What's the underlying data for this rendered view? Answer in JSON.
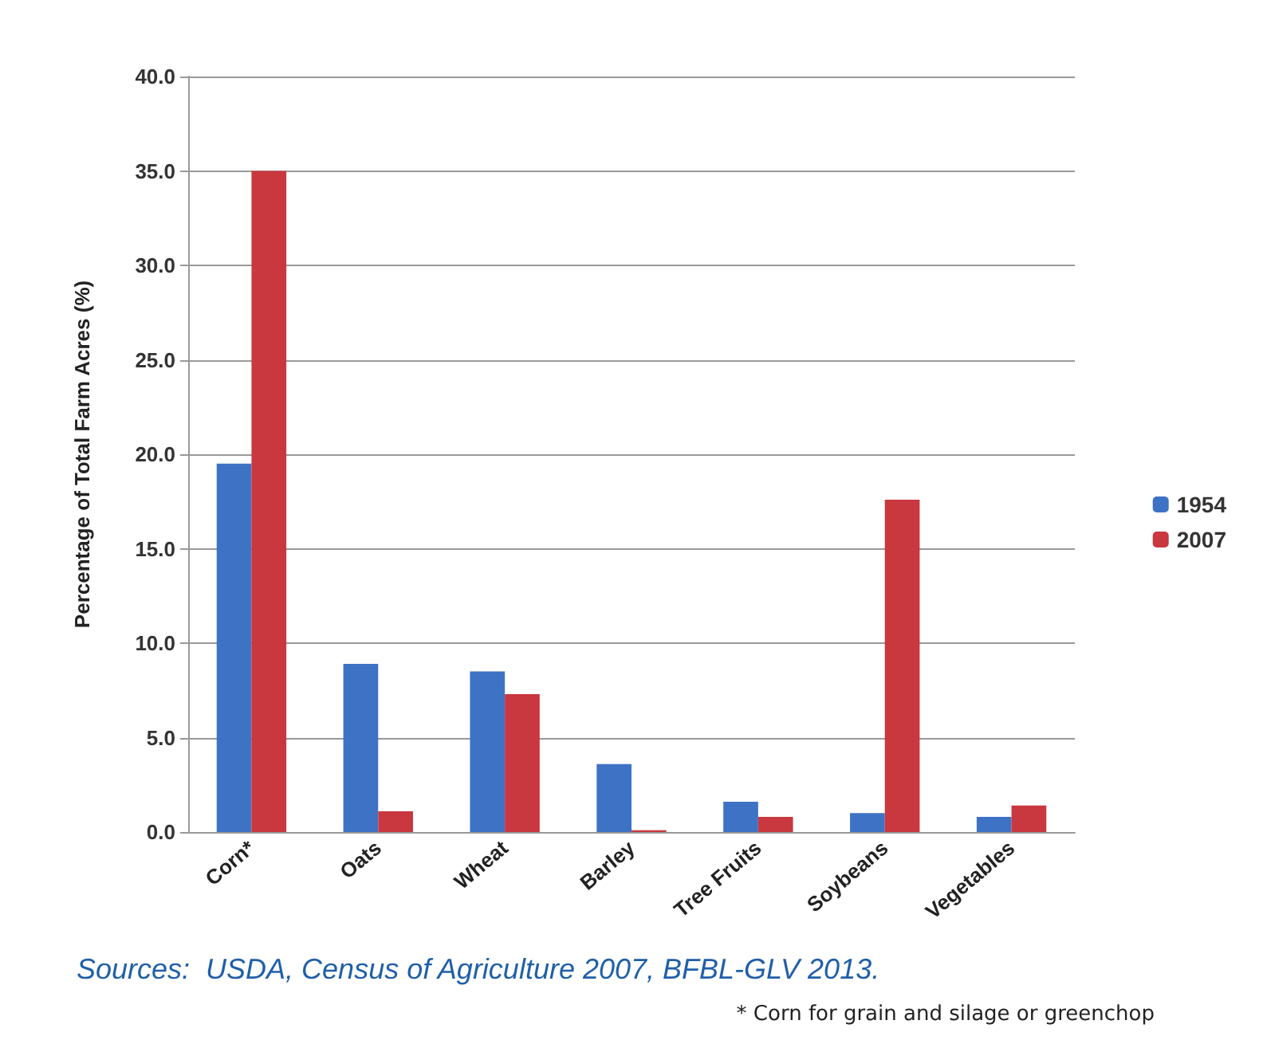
{
  "chart_data": {
    "type": "bar",
    "ylabel": "Percentage of Total Farm Acres (%)",
    "categories": [
      "Corn*",
      "Oats",
      "Wheat",
      "Barley",
      "Tree Fruits",
      "Soybeans",
      "Vegetables"
    ],
    "series": [
      {
        "name": "1954",
        "color": "#3e72c4",
        "values": [
          19.5,
          8.9,
          8.5,
          3.6,
          1.6,
          1.0,
          0.8
        ]
      },
      {
        "name": "2007",
        "color": "#c9373f",
        "values": [
          35.0,
          1.1,
          7.3,
          0.1,
          0.8,
          17.6,
          1.4
        ]
      }
    ],
    "ylim": [
      0,
      40
    ],
    "yticks": [
      {
        "value": 0,
        "label": "0.0"
      },
      {
        "value": 5,
        "label": "5.0"
      },
      {
        "value": 10,
        "label": "10.0"
      },
      {
        "value": 15,
        "label": "15.0"
      },
      {
        "value": 20,
        "label": "20.0"
      },
      {
        "value": 25,
        "label": "25.0"
      },
      {
        "value": 30,
        "label": "30.0"
      },
      {
        "value": 35,
        "label": "35.0"
      },
      {
        "value": 40,
        "label": "40.0"
      }
    ],
    "grid": "y",
    "legend": "right",
    "annotations": [
      "Sources:  USDA, Census of Agriculture 2007, BFBL-GLV 2013.",
      "* Corn for grain and silage or greenchop"
    ]
  }
}
